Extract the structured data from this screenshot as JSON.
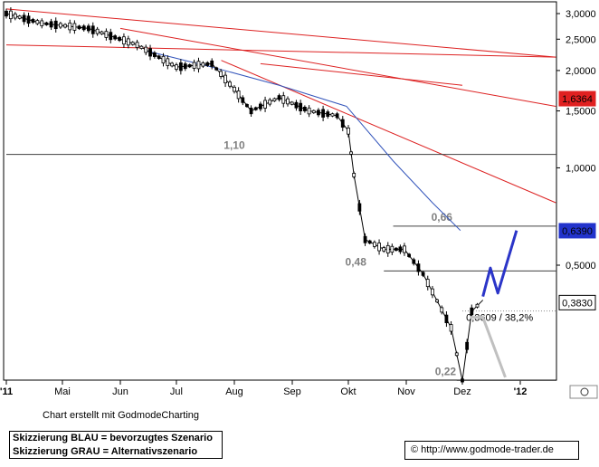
{
  "chart_data": {
    "type": "candlestick",
    "y_scale": "log",
    "y_ticks": [
      "3,0000",
      "2,5000",
      "2,0000",
      "1,5000",
      "1,0000",
      "0,5000"
    ],
    "y_tick_values": [
      3.0,
      2.5,
      2.0,
      1.5,
      1.0,
      0.5
    ],
    "x_ticks": [
      "'11",
      "Mai",
      "Jun",
      "Jul",
      "Aug",
      "Sep",
      "Okt",
      "Nov",
      "Dez",
      "'12"
    ],
    "price_flags": [
      {
        "label": "1,6364",
        "value": 1.6364,
        "color": "#e02020"
      },
      {
        "label": "0,6390",
        "value": 0.639,
        "color": "#2233cc"
      },
      {
        "label": "0,3830",
        "value": 0.383,
        "color": "#000000"
      }
    ],
    "horizontal_levels": [
      {
        "label": "1,10",
        "value": 1.1
      },
      {
        "label": "0,66",
        "value": 0.66
      },
      {
        "label": "0,48",
        "value": 0.48
      },
      {
        "label": "0,22",
        "value": 0.22
      }
    ],
    "retracement_label": "0,3609 / 38,2%",
    "retracement_value": 0.3609,
    "price_path": [
      {
        "date": "2011-04-01",
        "value": 3.0
      },
      {
        "date": "2011-04-20",
        "value": 2.8
      },
      {
        "date": "2011-05-15",
        "value": 2.7
      },
      {
        "date": "2011-06-10",
        "value": 2.4
      },
      {
        "date": "2011-07-01",
        "value": 2.05
      },
      {
        "date": "2011-07-20",
        "value": 2.1
      },
      {
        "date": "2011-08-01",
        "value": 1.75
      },
      {
        "date": "2011-08-10",
        "value": 1.5
      },
      {
        "date": "2011-08-25",
        "value": 1.65
      },
      {
        "date": "2011-09-10",
        "value": 1.5
      },
      {
        "date": "2011-09-25",
        "value": 1.45
      },
      {
        "date": "2011-10-01",
        "value": 1.3
      },
      {
        "date": "2011-10-04",
        "value": 0.95
      },
      {
        "date": "2011-10-10",
        "value": 0.6
      },
      {
        "date": "2011-10-20",
        "value": 0.56
      },
      {
        "date": "2011-10-31",
        "value": 0.56
      },
      {
        "date": "2011-11-10",
        "value": 0.47
      },
      {
        "date": "2011-11-25",
        "value": 0.32
      },
      {
        "date": "2011-12-01",
        "value": 0.22
      },
      {
        "date": "2011-12-06",
        "value": 0.36
      },
      {
        "date": "2011-12-12",
        "value": 0.39
      }
    ],
    "moving_average": [
      {
        "date": "2011-06-15",
        "value": 2.3
      },
      {
        "date": "2011-07-20",
        "value": 2.05
      },
      {
        "date": "2011-08-25",
        "value": 1.8
      },
      {
        "date": "2011-09-30",
        "value": 1.55
      },
      {
        "date": "2011-10-25",
        "value": 1.05
      },
      {
        "date": "2011-11-15",
        "value": 0.78
      },
      {
        "date": "2011-11-30",
        "value": 0.64
      }
    ],
    "trendlines": [
      {
        "from": {
          "date": "2011-04-01",
          "value": 3.1
        },
        "to": {
          "date": "2012-01-20",
          "value": 2.2
        }
      },
      {
        "from": {
          "date": "2011-04-01",
          "value": 2.4
        },
        "to": {
          "date": "2012-01-20",
          "value": 2.2
        }
      },
      {
        "from": {
          "date": "2011-06-01",
          "value": 2.7
        },
        "to": {
          "date": "2012-01-20",
          "value": 1.55
        }
      },
      {
        "from": {
          "date": "2011-07-25",
          "value": 2.15
        },
        "to": {
          "date": "2012-01-20",
          "value": 0.78
        }
      },
      {
        "from": {
          "date": "2011-08-15",
          "value": 2.1
        },
        "to": {
          "date": "2011-12-01",
          "value": 1.8
        }
      }
    ],
    "scenario_blue": [
      {
        "date": "2011-12-12",
        "value": 0.4
      },
      {
        "date": "2011-12-16",
        "value": 0.49
      },
      {
        "date": "2011-12-20",
        "value": 0.41
      },
      {
        "date": "2011-12-30",
        "value": 0.64
      }
    ],
    "scenario_grey": [
      {
        "date": "2011-12-05",
        "value": 0.345
      },
      {
        "date": "2011-12-12",
        "value": 0.345
      },
      {
        "date": "2011-12-24",
        "value": 0.225
      }
    ],
    "colors": {
      "price": "#000000",
      "moving_average": "#3355bb",
      "trendline": "#dd2222",
      "level": "#404040",
      "scenario_blue": "#2b35c8",
      "scenario_grey": "#c0c0c0"
    }
  },
  "footer": {
    "credit": "Chart erstellt mit GodmodeCharting",
    "legend_blue": "Skizzierung BLAU = bevorzugtes Szenario",
    "legend_grey": "Skizzierung GRAU = Alternativszenario",
    "copyright_symbol": "©",
    "url": "http://www.godmode-trader.de"
  }
}
